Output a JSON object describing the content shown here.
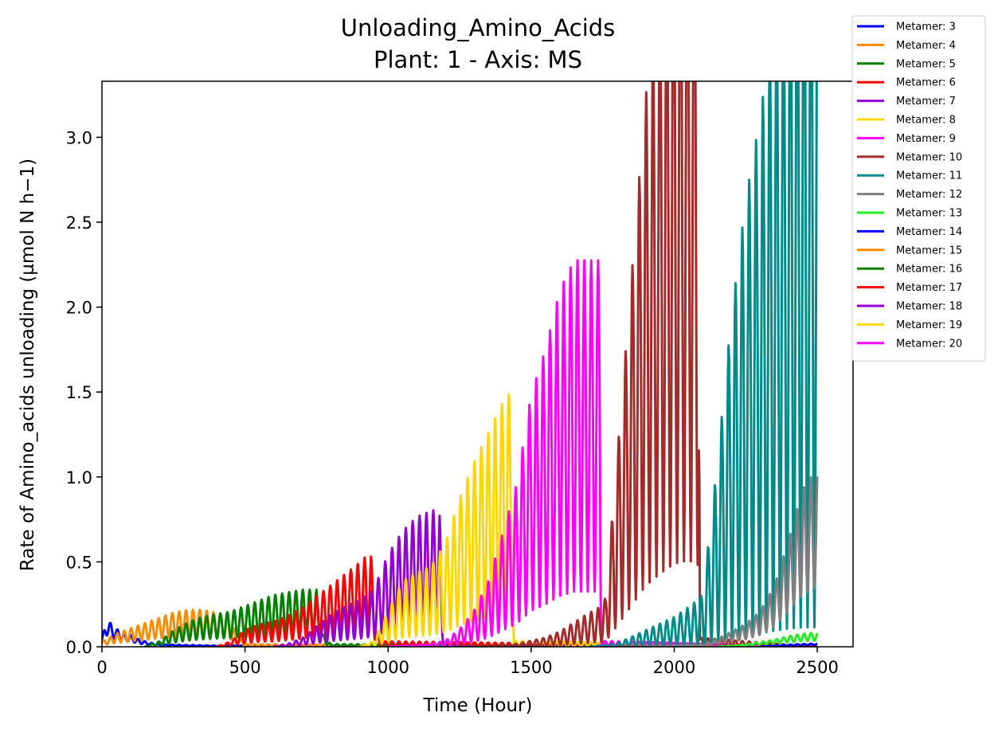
{
  "chart_data": {
    "type": "line",
    "title": "Unloading_Amino_Acids",
    "subtitle": "Plant: 1 - Axis: MS",
    "xlabel": "Time (Hour)",
    "ylabel": "Rate of Amino_acids unloading (µmol N h−1)",
    "xlim": [
      0,
      2625
    ],
    "ylim": [
      0,
      3.33
    ],
    "xticks": [
      0,
      500,
      1000,
      1500,
      2000,
      2500
    ],
    "xtick_labels": [
      "0",
      "500",
      "1000",
      "1500",
      "2000",
      "2500"
    ],
    "yticks": [
      0,
      0.5,
      1.0,
      1.5,
      2.0,
      2.5,
      3.0
    ],
    "ytick_labels": [
      "0.0",
      "0.5",
      "1.0",
      "1.5",
      "2.0",
      "2.5",
      "3.0"
    ],
    "grid": false,
    "legend_position": "outside-top-right",
    "series": [
      {
        "name": "Metamer: 3",
        "color": "#0000ff",
        "points": [
          [
            0,
            0.04
          ],
          [
            20,
            0.12
          ],
          [
            40,
            0.08
          ],
          [
            60,
            0.07
          ],
          [
            80,
            0.05
          ],
          [
            100,
            0.05
          ],
          [
            130,
            0.03
          ],
          [
            160,
            0.02
          ],
          [
            200,
            0.01
          ],
          [
            400,
            0.005
          ],
          [
            2500,
            0.0
          ]
        ],
        "osc": 0.4
      },
      {
        "name": "Metamer: 4",
        "color": "#ff8c00",
        "points": [
          [
            0,
            0.02
          ],
          [
            50,
            0.05
          ],
          [
            100,
            0.07
          ],
          [
            150,
            0.09
          ],
          [
            200,
            0.11
          ],
          [
            250,
            0.13
          ],
          [
            300,
            0.14
          ],
          [
            350,
            0.14
          ],
          [
            400,
            0.13
          ],
          [
            440,
            0.12
          ],
          [
            470,
            0.05
          ],
          [
            500,
            0.01
          ],
          [
            2500,
            0.0
          ]
        ],
        "osc": 0.55
      },
      {
        "name": "Metamer: 5",
        "color": "#008000",
        "points": [
          [
            150,
            0.0
          ],
          [
            200,
            0.02
          ],
          [
            250,
            0.06
          ],
          [
            300,
            0.09
          ],
          [
            350,
            0.11
          ],
          [
            400,
            0.12
          ],
          [
            450,
            0.13
          ],
          [
            500,
            0.15
          ],
          [
            550,
            0.17
          ],
          [
            600,
            0.19
          ],
          [
            650,
            0.2
          ],
          [
            700,
            0.21
          ],
          [
            750,
            0.21
          ],
          [
            770,
            0.05
          ],
          [
            800,
            0.01
          ],
          [
            2500,
            0.0
          ]
        ],
        "osc": 0.6
      },
      {
        "name": "Metamer: 6",
        "color": "#ff0000",
        "points": [
          [
            400,
            0.0
          ],
          [
            450,
            0.02
          ],
          [
            500,
            0.06
          ],
          [
            550,
            0.08
          ],
          [
            600,
            0.09
          ],
          [
            650,
            0.11
          ],
          [
            700,
            0.14
          ],
          [
            750,
            0.18
          ],
          [
            800,
            0.22
          ],
          [
            850,
            0.26
          ],
          [
            900,
            0.3
          ],
          [
            940,
            0.34
          ],
          [
            955,
            0.1
          ],
          [
            970,
            0.02
          ],
          [
            2500,
            0.0
          ]
        ],
        "osc": 0.65
      },
      {
        "name": "Metamer: 7",
        "color": "#9400d3",
        "points": [
          [
            600,
            0.0
          ],
          [
            650,
            0.01
          ],
          [
            700,
            0.03
          ],
          [
            750,
            0.07
          ],
          [
            800,
            0.11
          ],
          [
            850,
            0.14
          ],
          [
            900,
            0.16
          ],
          [
            950,
            0.2
          ],
          [
            1000,
            0.32
          ],
          [
            1050,
            0.4
          ],
          [
            1100,
            0.45
          ],
          [
            1150,
            0.47
          ],
          [
            1180,
            0.48
          ],
          [
            1190,
            0.1
          ],
          [
            1200,
            0.0
          ],
          [
            2500,
            0.0
          ]
        ],
        "osc": 0.7
      },
      {
        "name": "Metamer: 8",
        "color": "#ffd700",
        "points": [
          [
            900,
            0.0
          ],
          [
            950,
            0.02
          ],
          [
            1000,
            0.12
          ],
          [
            1050,
            0.22
          ],
          [
            1100,
            0.25
          ],
          [
            1150,
            0.27
          ],
          [
            1200,
            0.35
          ],
          [
            1250,
            0.5
          ],
          [
            1300,
            0.62
          ],
          [
            1350,
            0.72
          ],
          [
            1400,
            0.82
          ],
          [
            1430,
            0.86
          ],
          [
            1440,
            0.02
          ],
          [
            2500,
            0.0
          ]
        ],
        "osc": 0.75
      },
      {
        "name": "Metamer: 9",
        "color": "#ff00ff",
        "points": [
          [
            1000,
            0.0
          ],
          [
            1150,
            0.01
          ],
          [
            1200,
            0.02
          ],
          [
            1250,
            0.06
          ],
          [
            1300,
            0.12
          ],
          [
            1350,
            0.22
          ],
          [
            1400,
            0.38
          ],
          [
            1450,
            0.55
          ],
          [
            1500,
            0.85
          ],
          [
            1550,
            1.0
          ],
          [
            1600,
            1.2
          ],
          [
            1650,
            1.3
          ],
          [
            1700,
            1.3
          ],
          [
            1740,
            1.3
          ],
          [
            1745,
            0.02
          ],
          [
            2500,
            0.0
          ]
        ],
        "osc": 0.75
      },
      {
        "name": "Metamer: 10",
        "color": "#a52a2a",
        "points": [
          [
            1300,
            0.0
          ],
          [
            1450,
            0.01
          ],
          [
            1500,
            0.02
          ],
          [
            1550,
            0.03
          ],
          [
            1600,
            0.05
          ],
          [
            1650,
            0.08
          ],
          [
            1700,
            0.11
          ],
          [
            1740,
            0.13
          ],
          [
            1760,
            0.16
          ],
          [
            1790,
            0.5
          ],
          [
            1850,
            1.2
          ],
          [
            1900,
            1.8
          ],
          [
            1950,
            2.15
          ],
          [
            2000,
            2.45
          ],
          [
            2050,
            2.55
          ],
          [
            2085,
            2.4
          ],
          [
            2090,
            0.03
          ],
          [
            2500,
            0.0
          ]
        ],
        "osc": 0.8
      },
      {
        "name": "Metamer: 11",
        "color": "#008b8b",
        "points": [
          [
            1700,
            0.0
          ],
          [
            1800,
            0.01
          ],
          [
            1850,
            0.03
          ],
          [
            1900,
            0.05
          ],
          [
            1950,
            0.07
          ],
          [
            2000,
            0.09
          ],
          [
            2050,
            0.12
          ],
          [
            2080,
            0.14
          ],
          [
            2100,
            0.16
          ],
          [
            2150,
            0.55
          ],
          [
            2200,
            1.0
          ],
          [
            2250,
            1.35
          ],
          [
            2300,
            1.6
          ],
          [
            2350,
            1.9
          ],
          [
            2400,
            2.15
          ],
          [
            2450,
            2.3
          ],
          [
            2490,
            2.3
          ],
          [
            2500,
            2.3
          ]
        ],
        "osc": 0.95
      },
      {
        "name": "Metamer: 12",
        "color": "#808080",
        "points": [
          [
            1900,
            0.0
          ],
          [
            2100,
            0.01
          ],
          [
            2150,
            0.03
          ],
          [
            2200,
            0.06
          ],
          [
            2250,
            0.09
          ],
          [
            2300,
            0.14
          ],
          [
            2350,
            0.24
          ],
          [
            2400,
            0.42
          ],
          [
            2450,
            0.62
          ],
          [
            2500,
            0.7
          ]
        ],
        "osc": 0.5
      },
      {
        "name": "Metamer: 13",
        "color": "#22ee22",
        "points": [
          [
            2150,
            0.0
          ],
          [
            2250,
            0.01
          ],
          [
            2300,
            0.02
          ],
          [
            2350,
            0.03
          ],
          [
            2400,
            0.045
          ],
          [
            2450,
            0.055
          ],
          [
            2500,
            0.06
          ]
        ],
        "osc": 0.4
      },
      {
        "name": "Metamer: 14",
        "color": "#0000ff",
        "points": [
          [
            2300,
            0.0
          ],
          [
            2400,
            0.01
          ],
          [
            2500,
            0.015
          ]
        ],
        "osc": 0.3
      },
      {
        "name": "Metamer: 15",
        "color": "#ff8c00",
        "points": [],
        "osc": 0
      },
      {
        "name": "Metamer: 16",
        "color": "#008000",
        "points": [],
        "osc": 0
      },
      {
        "name": "Metamer: 17",
        "color": "#ff0000",
        "points": [],
        "osc": 0
      },
      {
        "name": "Metamer: 18",
        "color": "#9400d3",
        "points": [],
        "osc": 0
      },
      {
        "name": "Metamer: 19",
        "color": "#ffd700",
        "points": [],
        "osc": 0
      },
      {
        "name": "Metamer: 20",
        "color": "#ff00ff",
        "points": [],
        "osc": 0
      }
    ]
  }
}
